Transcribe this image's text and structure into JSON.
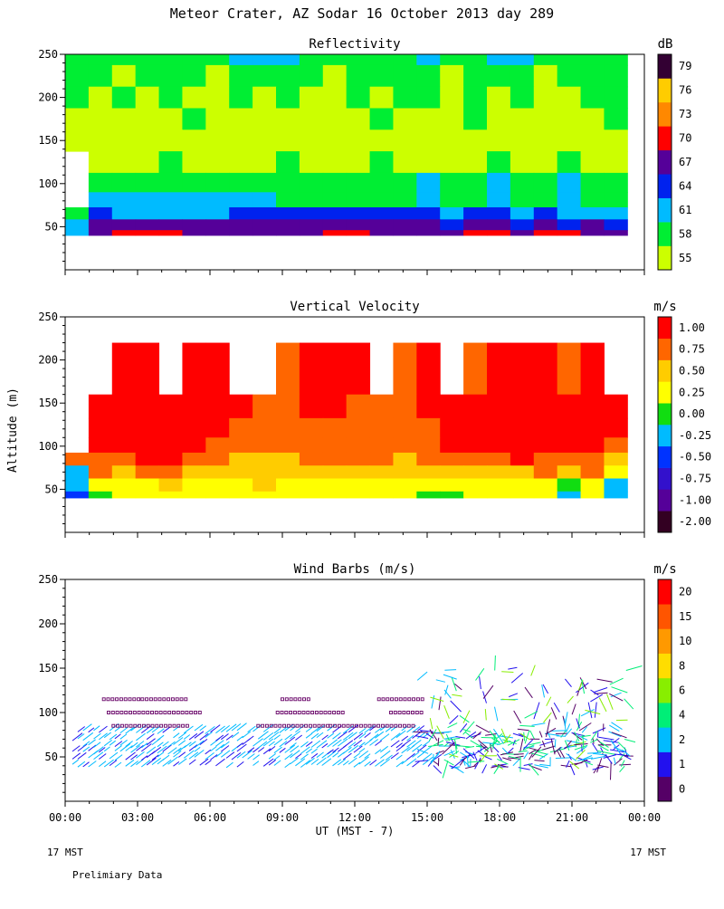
{
  "page": {
    "title": "Meteor Crater, AZ  Sodar  16 October 2013  day 289",
    "y_axis_label": "Altitude (m)",
    "x_axis_label": "UT  (MST - 7)",
    "left_time_note": "17 MST",
    "right_time_note": "17 MST",
    "footer_note": "Prelimiary Data"
  },
  "chart_data": [
    {
      "type": "heatmap",
      "title": "Reflectivity",
      "colorbar_unit": "dB",
      "x_ticks": [
        "00:00",
        "03:00",
        "06:00",
        "09:00",
        "12:00",
        "15:00",
        "18:00",
        "21:00",
        "00:00"
      ],
      "y_ticks": [
        50,
        100,
        150,
        200,
        250
      ],
      "ylim": [
        0,
        250
      ],
      "data_ylim": [
        40,
        250
      ],
      "levels": [
        {
          "label": "55",
          "color": "#ccff00"
        },
        {
          "label": "58",
          "color": "#00ee33"
        },
        {
          "label": "61",
          "color": "#00bbff"
        },
        {
          "label": "64",
          "color": "#0022ee"
        },
        {
          "label": "67",
          "color": "#550099"
        },
        {
          "label": "70",
          "color": "#ff0000"
        },
        {
          "label": "73",
          "color": "#ff8800"
        },
        {
          "label": "76",
          "color": "#ffcc00"
        },
        {
          "label": "79",
          "color": "#330033"
        }
      ],
      "bands": [
        {
          "alt": 250,
          "values": [
            1,
            1,
            1,
            1,
            1,
            1,
            1,
            2,
            2,
            2,
            1,
            1,
            1,
            1,
            1,
            2,
            1,
            1,
            2,
            2,
            1,
            1,
            1,
            1
          ]
        },
        {
          "alt": 225,
          "values": [
            1,
            1,
            0,
            1,
            1,
            1,
            0,
            1,
            1,
            1,
            1,
            0,
            1,
            1,
            1,
            1,
            0,
            1,
            1,
            1,
            0,
            1,
            1,
            1
          ]
        },
        {
          "alt": 200,
          "values": [
            1,
            0,
            1,
            0,
            1,
            0,
            0,
            1,
            0,
            1,
            0,
            0,
            1,
            0,
            1,
            1,
            0,
            1,
            0,
            1,
            0,
            0,
            1,
            1
          ]
        },
        {
          "alt": 175,
          "values": [
            0,
            0,
            0,
            0,
            0,
            1,
            0,
            0,
            0,
            0,
            0,
            0,
            0,
            1,
            0,
            0,
            0,
            1,
            0,
            0,
            0,
            0,
            0,
            1
          ]
        },
        {
          "alt": 150,
          "values": [
            0,
            0,
            0,
            0,
            0,
            0,
            0,
            0,
            0,
            0,
            0,
            0,
            0,
            0,
            0,
            0,
            0,
            0,
            0,
            0,
            0,
            0,
            0,
            0
          ]
        },
        {
          "alt": 125,
          "values": [
            -1,
            0,
            0,
            0,
            1,
            0,
            0,
            0,
            0,
            1,
            0,
            0,
            0,
            1,
            0,
            0,
            0,
            0,
            1,
            0,
            0,
            1,
            0,
            0
          ]
        },
        {
          "alt": 100,
          "values": [
            -1,
            1,
            1,
            1,
            1,
            1,
            1,
            1,
            1,
            1,
            1,
            1,
            1,
            1,
            1,
            2,
            1,
            1,
            2,
            1,
            1,
            2,
            1,
            1
          ]
        },
        {
          "alt": 80,
          "values": [
            -1,
            2,
            2,
            2,
            2,
            2,
            2,
            2,
            2,
            1,
            1,
            1,
            1,
            1,
            1,
            2,
            1,
            1,
            2,
            1,
            1,
            2,
            1,
            1
          ]
        },
        {
          "alt": 65,
          "values": [
            1,
            3,
            2,
            2,
            2,
            2,
            2,
            3,
            3,
            3,
            3,
            3,
            3,
            3,
            3,
            3,
            2,
            3,
            3,
            2,
            3,
            2,
            2,
            2
          ]
        },
        {
          "alt": 52,
          "values": [
            2,
            4,
            4,
            4,
            4,
            4,
            4,
            4,
            4,
            4,
            4,
            4,
            4,
            4,
            4,
            4,
            3,
            4,
            4,
            3,
            4,
            3,
            4,
            3
          ]
        },
        {
          "alt": 40,
          "values": [
            2,
            4,
            5,
            5,
            5,
            4,
            4,
            4,
            4,
            4,
            4,
            5,
            5,
            4,
            4,
            4,
            4,
            5,
            5,
            4,
            5,
            5,
            4,
            4
          ]
        }
      ]
    },
    {
      "type": "heatmap",
      "title": "Vertical Velocity",
      "colorbar_unit": "m/s",
      "x_ticks": [
        "00:00",
        "03:00",
        "06:00",
        "09:00",
        "12:00",
        "15:00",
        "18:00",
        "21:00",
        "00:00"
      ],
      "y_ticks": [
        50,
        100,
        150,
        200,
        250
      ],
      "ylim": [
        0,
        250
      ],
      "data_ylim": [
        40,
        220
      ],
      "levels": [
        {
          "label": "-2.00",
          "color": "#330022"
        },
        {
          "label": "-1.00",
          "color": "#550099"
        },
        {
          "label": "-0.75",
          "color": "#3311cc"
        },
        {
          "label": "-0.50",
          "color": "#0033ff"
        },
        {
          "label": "-0.25",
          "color": "#00bbff"
        },
        {
          "label": "0.00",
          "color": "#11dd11"
        },
        {
          "label": "0.25",
          "color": "#ffff00"
        },
        {
          "label": "0.50",
          "color": "#ffcc00"
        },
        {
          "label": "0.75",
          "color": "#ff6600"
        },
        {
          "label": "1.00",
          "color": "#ff0000"
        }
      ],
      "bands": [
        {
          "alt": 175,
          "values": [
            -1,
            -1,
            9,
            9,
            -1,
            9,
            9,
            -1,
            -1,
            8,
            9,
            9,
            9,
            -1,
            8,
            9,
            -1,
            8,
            9,
            9,
            9,
            8,
            9,
            -1
          ]
        },
        {
          "alt": 145,
          "values": [
            -1,
            9,
            9,
            9,
            9,
            9,
            9,
            9,
            8,
            8,
            9,
            9,
            8,
            8,
            8,
            9,
            9,
            9,
            9,
            9,
            9,
            9,
            9,
            9
          ]
        },
        {
          "alt": 120,
          "values": [
            -1,
            9,
            9,
            9,
            9,
            9,
            9,
            8,
            8,
            8,
            8,
            8,
            8,
            8,
            8,
            8,
            9,
            9,
            9,
            9,
            9,
            9,
            9,
            9
          ]
        },
        {
          "alt": 100,
          "values": [
            -1,
            9,
            9,
            9,
            9,
            9,
            8,
            8,
            8,
            8,
            8,
            8,
            8,
            8,
            8,
            8,
            9,
            9,
            9,
            9,
            9,
            9,
            9,
            8
          ]
        },
        {
          "alt": 85,
          "values": [
            8,
            8,
            8,
            9,
            9,
            8,
            8,
            7,
            7,
            7,
            8,
            8,
            8,
            8,
            7,
            8,
            8,
            8,
            8,
            9,
            8,
            8,
            8,
            7
          ]
        },
        {
          "alt": 70,
          "values": [
            4,
            8,
            7,
            8,
            8,
            7,
            7,
            7,
            7,
            7,
            7,
            7,
            7,
            7,
            7,
            7,
            7,
            7,
            7,
            7,
            8,
            7,
            8,
            6
          ]
        },
        {
          "alt": 55,
          "values": [
            4,
            6,
            6,
            6,
            7,
            6,
            6,
            6,
            7,
            6,
            6,
            6,
            6,
            6,
            6,
            6,
            6,
            6,
            6,
            6,
            6,
            5,
            6,
            4
          ]
        },
        {
          "alt": 40,
          "values": [
            3,
            5,
            6,
            6,
            6,
            6,
            6,
            6,
            6,
            6,
            6,
            6,
            6,
            6,
            6,
            5,
            5,
            6,
            6,
            6,
            6,
            4,
            6,
            4
          ]
        }
      ]
    },
    {
      "type": "scatter",
      "title": "Wind Barbs (m/s)",
      "colorbar_unit": "m/s",
      "x_ticks": [
        "00:00",
        "03:00",
        "06:00",
        "09:00",
        "12:00",
        "15:00",
        "18:00",
        "21:00",
        "00:00"
      ],
      "y_ticks": [
        50,
        100,
        150,
        200,
        250
      ],
      "ylim": [
        0,
        250
      ],
      "levels": [
        {
          "label": "0",
          "color": "#550066"
        },
        {
          "label": "1",
          "color": "#2211ee"
        },
        {
          "label": "2",
          "color": "#00bbff"
        },
        {
          "label": "4",
          "color": "#00ee77"
        },
        {
          "label": "6",
          "color": "#88ee00"
        },
        {
          "label": "8",
          "color": "#ffdd00"
        },
        {
          "label": "10",
          "color": "#ff9900"
        },
        {
          "label": "15",
          "color": "#ff5500"
        },
        {
          "label": "20",
          "color": "#ff0000"
        }
      ],
      "calm_boxes": [
        {
          "hour_start": 1.6,
          "hour_end": 3.2,
          "alt": 115
        },
        {
          "hour_start": 3.2,
          "hour_end": 5.0,
          "alt": 115
        },
        {
          "hour_start": 1.8,
          "hour_end": 5.6,
          "alt": 100
        },
        {
          "hour_start": 2.0,
          "hour_end": 5.2,
          "alt": 85
        },
        {
          "hour_start": 9.0,
          "hour_end": 10.2,
          "alt": 115
        },
        {
          "hour_start": 8.8,
          "hour_end": 11.6,
          "alt": 100
        },
        {
          "hour_start": 13.0,
          "hour_end": 14.8,
          "alt": 115
        },
        {
          "hour_start": 13.5,
          "hour_end": 14.8,
          "alt": 100
        },
        {
          "hour_start": 8.0,
          "hour_end": 11.0,
          "alt": 85
        },
        {
          "hour_start": 11.0,
          "hour_end": 14.5,
          "alt": 85
        }
      ]
    }
  ]
}
